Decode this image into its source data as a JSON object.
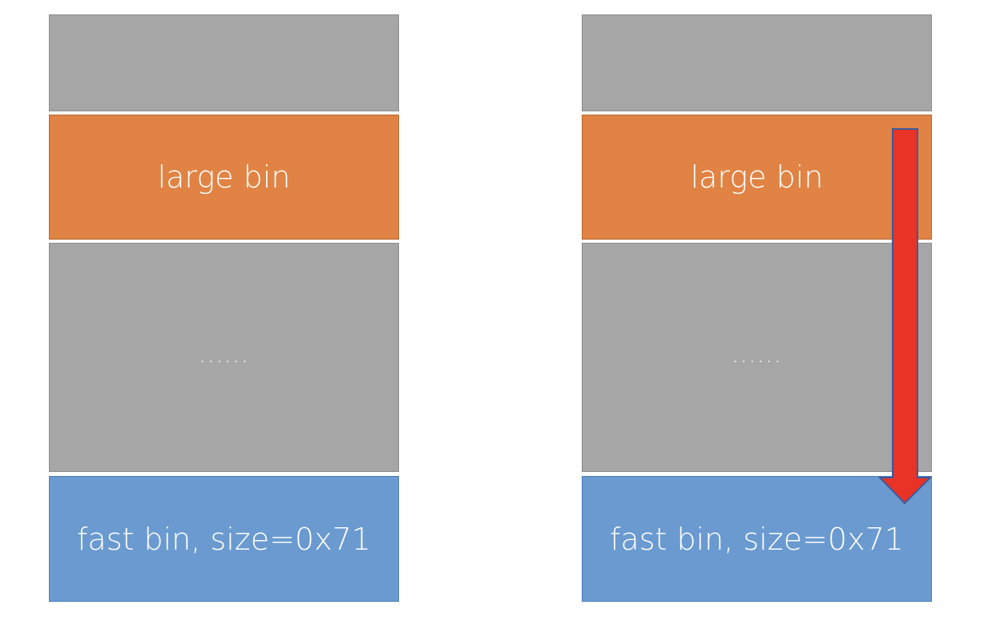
{
  "diagrams": [
    {
      "blocks": [
        {
          "label": ""
        },
        {
          "label": "large bin"
        },
        {
          "label": "......"
        },
        {
          "label": "fast bin, size=0x71"
        }
      ]
    },
    {
      "blocks": [
        {
          "label": ""
        },
        {
          "label": "large bin"
        },
        {
          "label": "......"
        },
        {
          "label": "fast bin, size=0x71"
        }
      ],
      "arrow": {
        "color": "#e83326",
        "outline": "#3c5a9a",
        "direction": "down"
      }
    }
  ],
  "colors": {
    "gray": "#a6a6a6",
    "orange": "#e08344",
    "blue": "#6a9ad0"
  }
}
